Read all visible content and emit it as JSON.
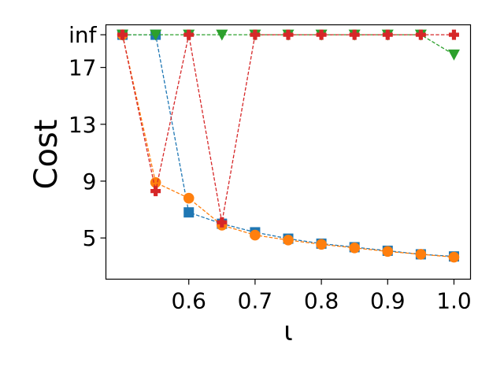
{
  "chart_data": {
    "type": "line",
    "xlabel": "ι",
    "ylabel": "Cost",
    "xlim": [
      0.475,
      1.025
    ],
    "ylim": [
      2.1,
      20.0
    ],
    "xticks": [
      0.6,
      0.7,
      0.8,
      0.9,
      1.0
    ],
    "xtick_labels": [
      "0.6",
      "0.7",
      "0.8",
      "0.9",
      "1.0"
    ],
    "yticks": [
      5,
      9,
      13,
      17,
      19.3
    ],
    "ytick_labels": [
      "5",
      "9",
      "13",
      "17",
      "inf"
    ],
    "inf_value": 19.3,
    "grid": false,
    "series": [
      {
        "color": "#1f77b4",
        "marker": "square",
        "x": [
          0.5,
          0.55,
          0.6,
          0.65,
          0.7,
          0.75,
          0.8,
          0.85,
          0.9,
          0.95,
          1.0
        ],
        "y": [
          "inf",
          "inf",
          6.8,
          6.0,
          5.4,
          4.95,
          4.6,
          4.35,
          4.1,
          3.85,
          3.7
        ]
      },
      {
        "color": "#ff7f0e",
        "marker": "circle",
        "x": [
          0.5,
          0.55,
          0.6,
          0.65,
          0.7,
          0.75,
          0.8,
          0.85,
          0.9,
          0.95,
          1.0
        ],
        "y": [
          "inf",
          8.9,
          7.8,
          5.9,
          5.2,
          4.85,
          4.55,
          4.3,
          4.05,
          3.85,
          3.65
        ]
      },
      {
        "color": "#2ca02c",
        "marker": "triangle-down",
        "x": [
          0.5,
          0.55,
          0.6,
          0.65,
          0.7,
          0.75,
          0.8,
          0.85,
          0.9,
          0.95,
          1.0
        ],
        "y": [
          "inf",
          "inf",
          "inf",
          "inf",
          "inf",
          "inf",
          "inf",
          "inf",
          "inf",
          "inf",
          17.9
        ]
      },
      {
        "color": "#d62728",
        "marker": "plus",
        "x": [
          0.5,
          0.55,
          0.6,
          0.65,
          0.7,
          0.75,
          0.8,
          0.85,
          0.9,
          0.95,
          1.0
        ],
        "y": [
          "inf",
          8.3,
          "inf",
          6.1,
          "inf",
          "inf",
          "inf",
          "inf",
          "inf",
          "inf",
          "inf"
        ]
      }
    ]
  }
}
